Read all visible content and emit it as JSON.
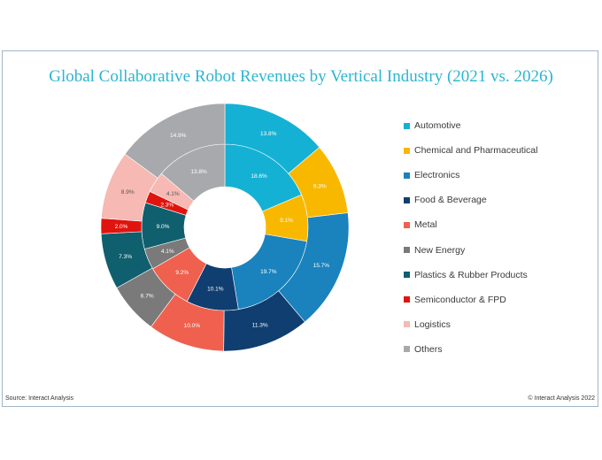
{
  "title": "Global Collaborative Robot Revenues by Vertical Industry (2021 vs. 2026)",
  "source": "Source: Interact Analysis",
  "copyright": "© Interact Analysis 2022",
  "legend": [
    {
      "label": "Automotive",
      "color": "#14b1d4"
    },
    {
      "label": "Chemical and Pharmaceutical",
      "color": "#f9b800"
    },
    {
      "label": "Electronics",
      "color": "#1a82bd"
    },
    {
      "label": "Food & Beverage",
      "color": "#103e70"
    },
    {
      "label": "Metal",
      "color": "#f0604f"
    },
    {
      "label": "New Energy",
      "color": "#7a7a7a"
    },
    {
      "label": "Plastics & Rubber Products",
      "color": "#105f6e"
    },
    {
      "label": "Semiconductor & FPD",
      "color": "#e0140e"
    },
    {
      "label": "Logistics",
      "color": "#f6b9b3"
    },
    {
      "label": "Others",
      "color": "#a7a9ac"
    }
  ],
  "chart_data": {
    "type": "donut",
    "title": "Global Collaborative Robot Revenues by Vertical Industry (2021 vs. 2026)",
    "categories": [
      "Automotive",
      "Chemical and Pharmaceutical",
      "Electronics",
      "Food & Beverage",
      "Metal",
      "New Energy",
      "Plastics & Rubber Products",
      "Semiconductor & FPD",
      "Logistics",
      "Others"
    ],
    "series": [
      {
        "ring": "inner",
        "values": [
          18.6,
          9.1,
          19.7,
          10.1,
          9.2,
          4.1,
          9.0,
          2.3,
          4.1,
          13.8
        ],
        "labels": [
          "18.6%",
          "9.1%",
          "19.7%",
          "10.1%",
          "9.2%",
          "4.1%",
          "9.0%",
          "2.3%",
          "4.1%",
          "13.8%"
        ]
      },
      {
        "ring": "outer",
        "values": [
          13.8,
          9.3,
          15.7,
          11.3,
          10.0,
          6.7,
          7.3,
          2.0,
          8.9,
          14.9
        ],
        "labels": [
          "13.8%",
          "9.3%",
          "15.7%",
          "11.3%",
          "10.0%",
          "6.7%",
          "7.3%",
          "2.0%",
          "8.9%",
          "14.9%"
        ]
      }
    ],
    "legend_position": "right"
  }
}
